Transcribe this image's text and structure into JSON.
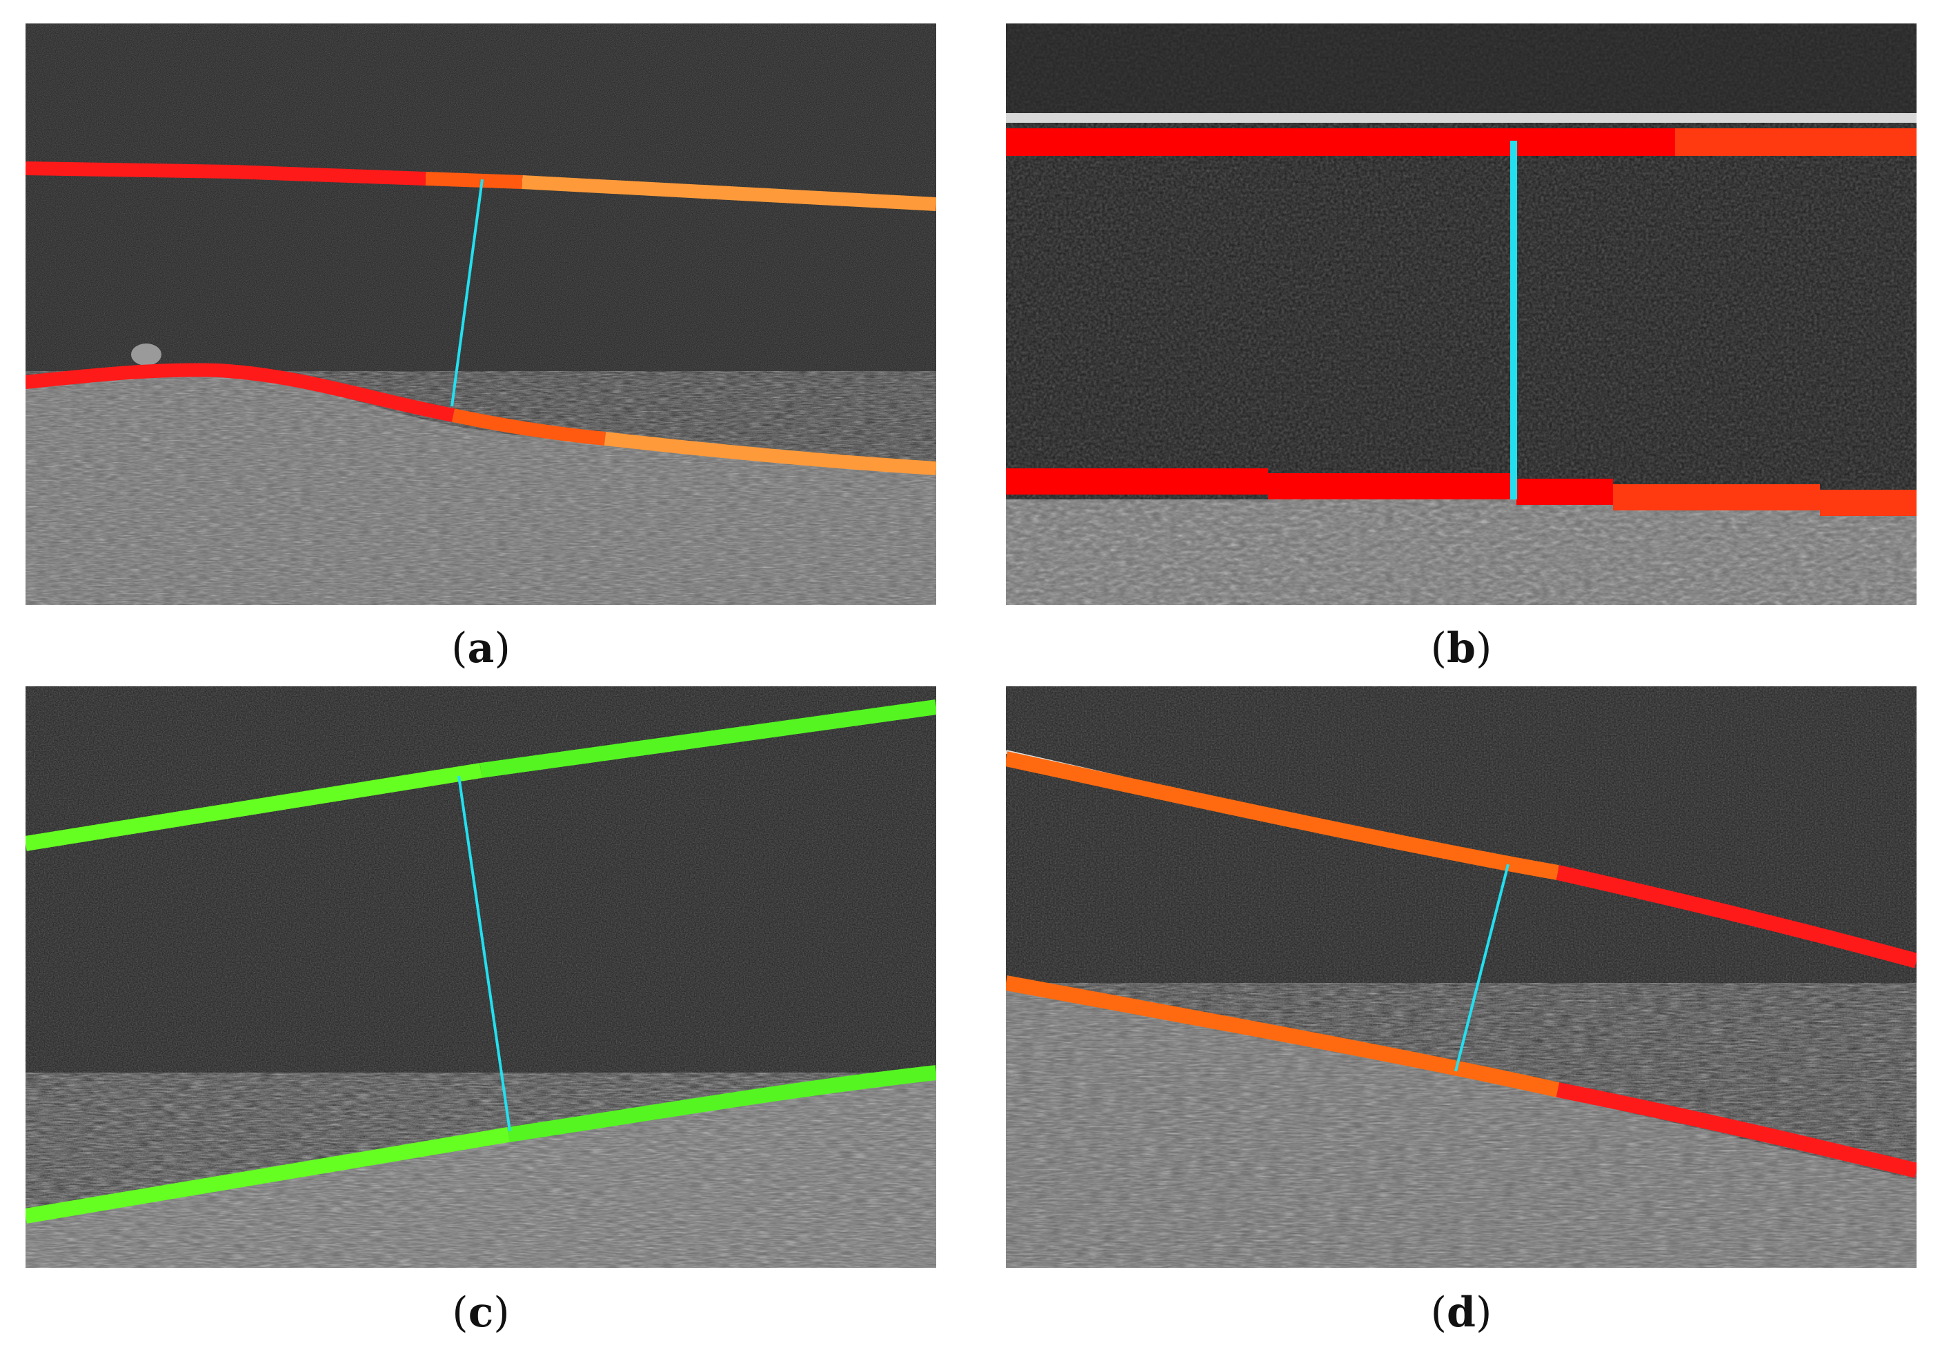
{
  "panels": [
    {
      "id": "a",
      "label": "a",
      "boundary_colors": [
        "#ff1a1a",
        "#ff5a10",
        "#ff9a3a"
      ],
      "measurement_color": "#22e0f0"
    },
    {
      "id": "b",
      "label": "b",
      "boundary_colors": [
        "#ff0000",
        "#ff3a10"
      ],
      "measurement_color": "#22e0f0"
    },
    {
      "id": "c",
      "label": "c",
      "boundary_colors": [
        "#66ff22",
        "#44ee22"
      ],
      "measurement_color": "#22e0f0"
    },
    {
      "id": "d",
      "label": "d",
      "boundary_colors": [
        "#ff6a10",
        "#ff1a1a"
      ],
      "measurement_color": "#22e0f0"
    }
  ]
}
